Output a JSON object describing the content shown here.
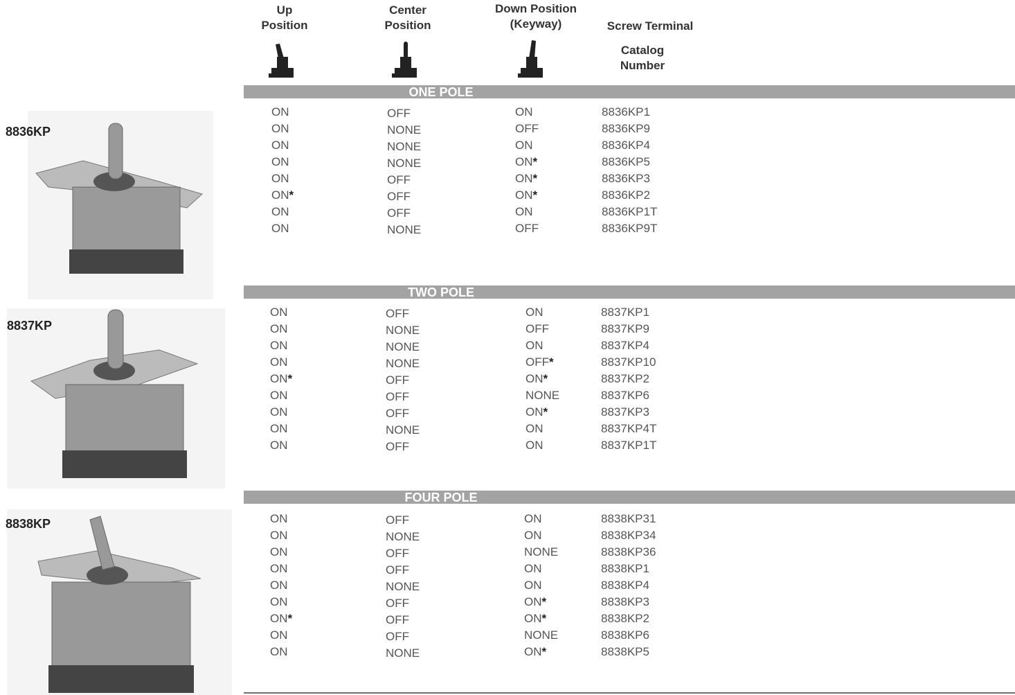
{
  "header": {
    "columns": [
      {
        "lines": [
          "Up",
          "Position"
        ]
      },
      {
        "lines": [
          "Center",
          "Position"
        ]
      },
      {
        "lines": [
          "Down Position",
          "(Keyway)"
        ]
      },
      {
        "lines": [
          "Screw Terminal"
        ]
      },
      {
        "lines": [
          "Catalog",
          "Number"
        ]
      }
    ]
  },
  "sections": [
    {
      "title": "ONE POLE",
      "product": "8836KP",
      "rows": [
        [
          "ON",
          "OFF",
          "ON",
          "8836KP1"
        ],
        [
          "ON",
          "NONE",
          "OFF",
          "8836KP9"
        ],
        [
          "ON",
          "NONE",
          "ON",
          "8836KP4"
        ],
        [
          "ON",
          "NONE",
          "ON*",
          "8836KP5"
        ],
        [
          "ON",
          "OFF",
          "ON*",
          "8836KP3"
        ],
        [
          "ON*",
          "OFF",
          "ON*",
          "8836KP2"
        ],
        [
          "ON",
          "OFF",
          "ON",
          "8836KP1T"
        ],
        [
          "ON",
          "NONE",
          "OFF",
          "8836KP9T"
        ]
      ]
    },
    {
      "title": "TWO POLE",
      "product": "8837KP",
      "rows": [
        [
          "ON",
          "OFF",
          "ON",
          "8837KP1"
        ],
        [
          "ON",
          "NONE",
          "OFF",
          "8837KP9"
        ],
        [
          "ON",
          "NONE",
          "ON",
          "8837KP4"
        ],
        [
          "ON",
          "NONE",
          "OFF*",
          "8837KP10"
        ],
        [
          "ON*",
          "OFF",
          "ON*",
          "8837KP2"
        ],
        [
          "ON",
          "OFF",
          "NONE",
          "8837KP6"
        ],
        [
          "ON",
          "OFF",
          "ON*",
          "8837KP3"
        ],
        [
          "ON",
          "NONE",
          "ON",
          "8837KP4T"
        ],
        [
          "ON",
          "OFF",
          "ON",
          "8837KP1T"
        ]
      ]
    },
    {
      "title": "FOUR POLE",
      "product": "8838KP",
      "rows": [
        [
          "ON",
          "OFF",
          "ON",
          "8838KP31"
        ],
        [
          "ON",
          "NONE",
          "ON",
          "8838KP34"
        ],
        [
          "ON",
          "OFF",
          "NONE",
          "8838KP36"
        ],
        [
          "ON",
          "OFF",
          "ON",
          "8838KP1"
        ],
        [
          "ON",
          "NONE",
          "ON",
          "8838KP4"
        ],
        [
          "ON",
          "OFF",
          "ON*",
          "8838KP3"
        ],
        [
          "ON*",
          "OFF",
          "ON*",
          "8838KP2"
        ],
        [
          "ON",
          "OFF",
          "NONE",
          "8838KP6"
        ],
        [
          "ON",
          "NONE",
          "ON*",
          "8838KP5"
        ]
      ]
    }
  ]
}
